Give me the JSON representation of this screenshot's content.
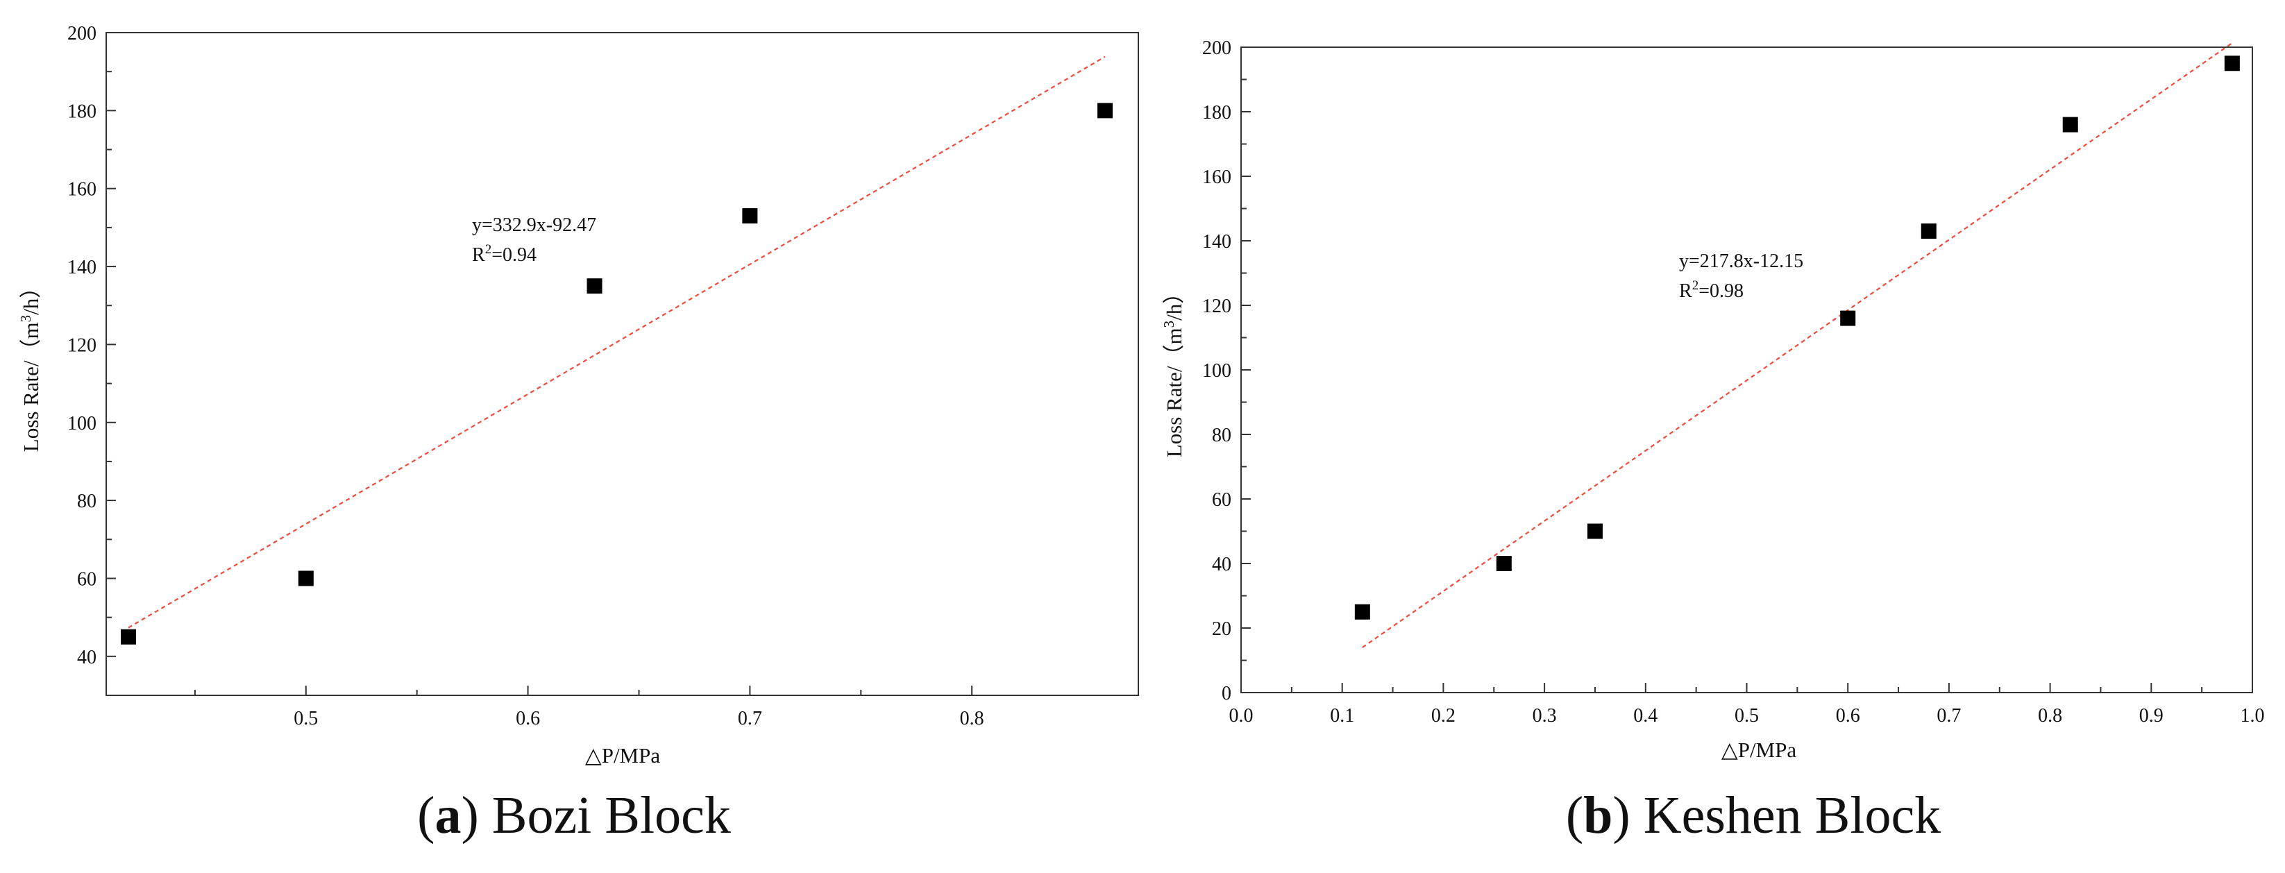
{
  "chart_data": [
    {
      "type": "scatter",
      "id": "a",
      "caption_letter": "a",
      "caption_text": "Bozi Block",
      "title": "",
      "xlabel": "△P/MPa",
      "ylabel_prefix": "Loss Rate/（m",
      "ylabel_sup": "3",
      "ylabel_suffix": "/h）",
      "xlim": [
        0.41,
        0.875
      ],
      "ylim": [
        30,
        200
      ],
      "xticks": [
        0.5,
        0.6,
        0.7,
        0.8
      ],
      "xtick_labels": [
        "0.5",
        "0.6",
        "0.7",
        "0.8"
      ],
      "yticks": [
        40,
        60,
        80,
        100,
        120,
        140,
        160,
        180,
        200
      ],
      "ytick_labels": [
        "40",
        "60",
        "80",
        "100",
        "120",
        "140",
        "160",
        "180",
        "200"
      ],
      "points": [
        {
          "x": 0.42,
          "y": 45
        },
        {
          "x": 0.5,
          "y": 60
        },
        {
          "x": 0.63,
          "y": 135
        },
        {
          "x": 0.7,
          "y": 153
        },
        {
          "x": 0.86,
          "y": 180
        }
      ],
      "fit": {
        "slope": 332.9,
        "intercept": -92.47,
        "x_range": [
          0.42,
          0.86
        ]
      },
      "equation": "y=332.9x-92.47",
      "r2_prefix": "R",
      "r2_sup": "2",
      "r2_value": "=0.94",
      "marker_color": "#000000",
      "fit_color": "#f04a3a",
      "grid": false
    },
    {
      "type": "scatter",
      "id": "b",
      "caption_letter": "b",
      "caption_text": "Keshen Block",
      "title": "",
      "xlabel": "△P/MPa",
      "ylabel_prefix": "Loss Rate/（m",
      "ylabel_sup": "3",
      "ylabel_suffix": "/h）",
      "xlim": [
        0,
        1.0
      ],
      "ylim": [
        0,
        200
      ],
      "xticks": [
        0.0,
        0.1,
        0.2,
        0.3,
        0.4,
        0.5,
        0.6,
        0.7,
        0.8,
        0.9,
        1.0
      ],
      "xtick_labels": [
        "0.0",
        "0.1",
        "0.2",
        "0.3",
        "0.4",
        "0.5",
        "0.6",
        "0.7",
        "0.8",
        "0.9",
        "1.0"
      ],
      "yticks": [
        0,
        20,
        40,
        60,
        80,
        100,
        120,
        140,
        160,
        180,
        200
      ],
      "ytick_labels": [
        "0",
        "20",
        "40",
        "60",
        "80",
        "100",
        "120",
        "140",
        "160",
        "180",
        "200"
      ],
      "points": [
        {
          "x": 0.12,
          "y": 25
        },
        {
          "x": 0.26,
          "y": 40
        },
        {
          "x": 0.35,
          "y": 50
        },
        {
          "x": 0.6,
          "y": 116
        },
        {
          "x": 0.68,
          "y": 143
        },
        {
          "x": 0.82,
          "y": 176
        },
        {
          "x": 0.98,
          "y": 195
        }
      ],
      "fit": {
        "slope": 217.8,
        "intercept": -12.15,
        "x_range": [
          0.12,
          0.98
        ]
      },
      "equation": "y=217.8x-12.15",
      "r2_prefix": "R",
      "r2_sup": "2",
      "r2_value": "=0.98",
      "marker_color": "#000000",
      "fit_color": "#f04a3a",
      "grid": false
    }
  ]
}
